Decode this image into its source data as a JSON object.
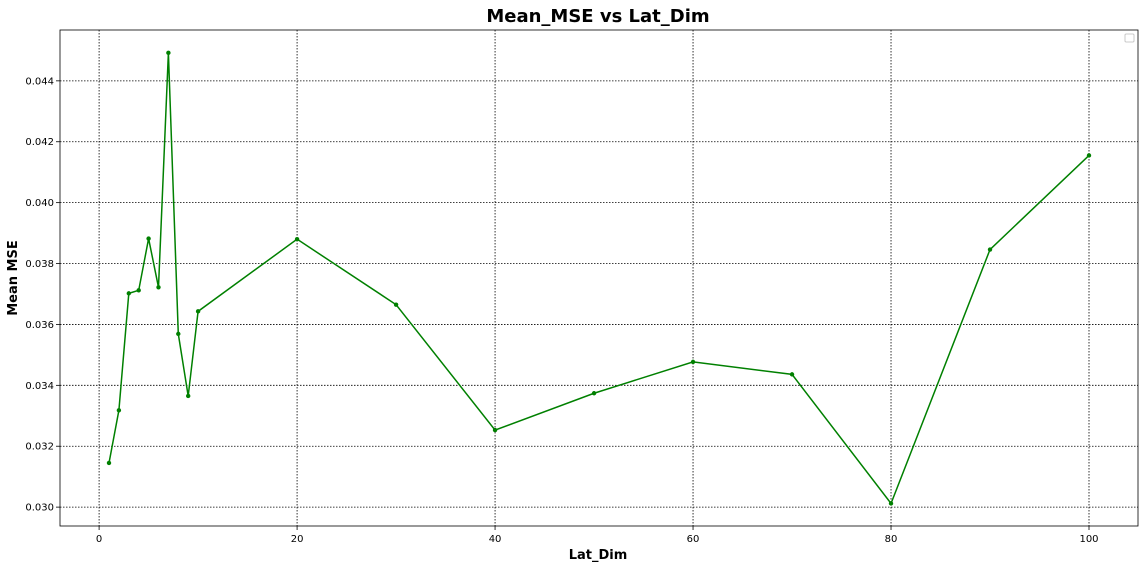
{
  "chart_data": {
    "type": "line",
    "title": "Mean_MSE vs Lat_Dim",
    "xlabel": "Lat_Dim",
    "ylabel": "Mean MSE",
    "xlim": [
      -3.95,
      104.95
    ],
    "ylim": [
      0.02938,
      0.04567
    ],
    "xticks": [
      0,
      20,
      40,
      60,
      80,
      100
    ],
    "xtick_labels": [
      "0",
      "20",
      "40",
      "60",
      "80",
      "100"
    ],
    "yticks": [
      0.03,
      0.032,
      0.034,
      0.036,
      0.038,
      0.04,
      0.042,
      0.044
    ],
    "ytick_labels": [
      "0.030",
      "0.032",
      "0.034",
      "0.036",
      "0.038",
      "0.040",
      "0.042",
      "0.044"
    ],
    "grid": true,
    "legend": "upper-right",
    "series": [
      {
        "color": "#008000",
        "marker": "dot",
        "x": [
          1,
          2,
          3,
          4,
          5,
          6,
          7,
          8,
          9,
          10,
          20,
          30,
          40,
          50,
          60,
          70,
          80,
          90,
          100
        ],
        "y": [
          0.03145,
          0.03318,
          0.03702,
          0.03712,
          0.03882,
          0.03722,
          0.04492,
          0.03569,
          0.03365,
          0.03643,
          0.0388,
          0.03665,
          0.03253,
          0.03374,
          0.03477,
          0.03436,
          0.03012,
          0.03846,
          0.04155
        ]
      }
    ]
  }
}
